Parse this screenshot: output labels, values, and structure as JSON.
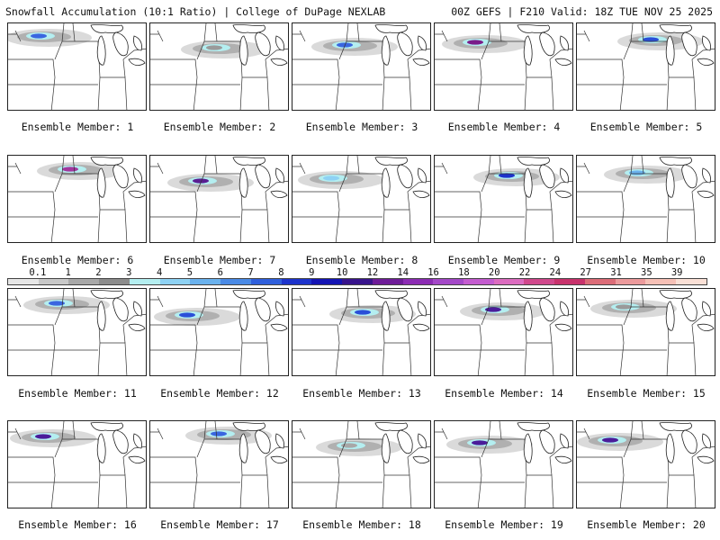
{
  "header": {
    "left_title": "Snowfall Accumulation (10:1 Ratio) | College of DuPage NEXLAB",
    "right_title": "00Z GEFS | F210 Valid: 18Z TUE NOV 25 2025"
  },
  "colorbar": {
    "labels": [
      "0.1",
      "1",
      "2",
      "3",
      "4",
      "5",
      "6",
      "7",
      "8",
      "9",
      "10",
      "12",
      "14",
      "16",
      "18",
      "20",
      "22",
      "24",
      "27",
      "31",
      "35",
      "39"
    ],
    "colors": [
      "#e6e6e6",
      "#c8c8c8",
      "#a8a8a8",
      "#8c8c8c",
      "#b4eef0",
      "#8ed2f4",
      "#6ab2ee",
      "#4a8ae6",
      "#2f5fdc",
      "#1d33cc",
      "#1414b4",
      "#38148c",
      "#6e1c98",
      "#8c2cb4",
      "#a448c8",
      "#c45cd0",
      "#dc6cc0",
      "#d0488c",
      "#c8326c",
      "#dc6c78",
      "#ec9a9c",
      "#f6c0b6",
      "#fae0d6"
    ]
  },
  "members": [
    {
      "label": "Ensemble Member: 1",
      "color": "#3a66e0"
    },
    {
      "label": "Ensemble Member: 2",
      "color": "#9a9a9a"
    },
    {
      "label": "Ensemble Member: 3",
      "color": "#3a66e0"
    },
    {
      "label": "Ensemble Member: 4",
      "color": "#7a1c8a"
    },
    {
      "label": "Ensemble Member: 5",
      "color": "#2a4fd8"
    },
    {
      "label": "Ensemble Member: 6",
      "color": "#a2369e"
    },
    {
      "label": "Ensemble Member: 7",
      "color": "#5a1e92"
    },
    {
      "label": "Ensemble Member: 8",
      "color": "#8ed2f4"
    },
    {
      "label": "Ensemble Member: 9",
      "color": "#1d33cc"
    },
    {
      "label": "Ensemble Member: 10",
      "color": "#6ab2ee"
    },
    {
      "label": "Ensemble Member: 11",
      "color": "#3a66e0"
    },
    {
      "label": "Ensemble Member: 12",
      "color": "#2a4fd8"
    },
    {
      "label": "Ensemble Member: 13",
      "color": "#2a4fd8"
    },
    {
      "label": "Ensemble Member: 14",
      "color": "#4a1c9a"
    },
    {
      "label": "Ensemble Member: 15",
      "color": "#9a9a9a"
    },
    {
      "label": "Ensemble Member: 16",
      "color": "#4a1c9a"
    },
    {
      "label": "Ensemble Member: 17",
      "color": "#3a66e0"
    },
    {
      "label": "Ensemble Member: 18",
      "color": "#a8a8a8"
    },
    {
      "label": "Ensemble Member: 19",
      "color": "#4a1c9a"
    },
    {
      "label": "Ensemble Member: 20",
      "color": "#4a1c9a"
    }
  ]
}
